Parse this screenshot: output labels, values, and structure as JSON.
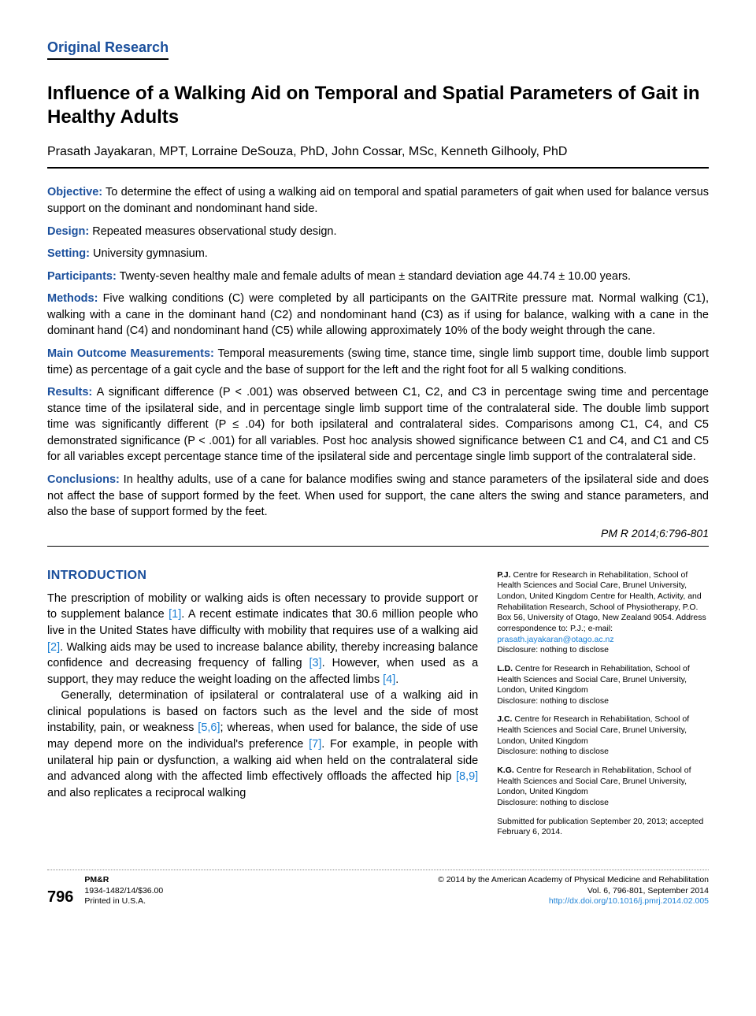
{
  "section_label": "Original Research",
  "title": "Influence of a Walking Aid on Temporal and Spatial Parameters of Gait in Healthy Adults",
  "authors": "Prasath Jayakaran, MPT, Lorraine DeSouza, PhD, John Cossar, MSc, Kenneth Gilhooly, PhD",
  "abstract": {
    "objective": {
      "label": "Objective:",
      "text": " To determine the effect of using a walking aid on temporal and spatial parameters of gait when used for balance versus support on the dominant and nondominant hand side."
    },
    "design": {
      "label": "Design:",
      "text": " Repeated measures observational study design."
    },
    "setting": {
      "label": "Setting:",
      "text": " University gymnasium."
    },
    "participants": {
      "label": "Participants:",
      "text": " Twenty-seven healthy male and female adults of mean ± standard deviation age 44.74 ± 10.00 years."
    },
    "methods": {
      "label": "Methods:",
      "text": " Five walking conditions (C) were completed by all participants on the GAITRite pressure mat. Normal walking (C1), walking with a cane in the dominant hand (C2) and nondominant hand (C3) as if using for balance, walking with a cane in the dominant hand (C4) and nondominant hand (C5) while allowing approximately 10% of the body weight through the cane."
    },
    "outcome": {
      "label": "Main Outcome Measurements:",
      "text": " Temporal measurements (swing time, stance time, single limb support time, double limb support time) as percentage of a gait cycle and the base of support for the left and the right foot for all 5 walking conditions."
    },
    "results": {
      "label": "Results:",
      "text": " A significant difference (P < .001) was observed between C1, C2, and C3 in percentage swing time and percentage stance time of the ipsilateral side, and in percentage single limb support time of the contralateral side. The double limb support time was significantly different (P ≤ .04) for both ipsilateral and contralateral sides. Comparisons among C1, C4, and C5 demonstrated significance (P < .001) for all variables. Post hoc analysis showed significance between C1 and C4, and C1 and C5 for all variables except percentage stance time of the ipsilateral side and percentage single limb support of the contralateral side."
    },
    "conclusions": {
      "label": "Conclusions:",
      "text": " In healthy adults, use of a cane for balance modifies swing and stance parameters of the ipsilateral side and does not affect the base of support formed by the feet. When used for support, the cane alters the swing and stance parameters, and also the base of support formed by the feet."
    }
  },
  "citation": "PM R 2014;6:796-801",
  "intro_heading": "INTRODUCTION",
  "intro_p1_a": "The prescription of mobility or walking aids is often necessary to provide support or to supplement balance ",
  "intro_p1_r1": "[1]",
  "intro_p1_b": ". A recent estimate indicates that 30.6 million people who live in the United States have difficulty with mobility that requires use of a walking aid ",
  "intro_p1_r2": "[2]",
  "intro_p1_c": ". Walking aids may be used to increase balance ability, thereby increasing balance confidence and decreasing frequency of falling ",
  "intro_p1_r3": "[3]",
  "intro_p1_d": ". However, when used as a support, they may reduce the weight loading on the affected limbs ",
  "intro_p1_r4": "[4]",
  "intro_p1_e": ".",
  "intro_p2_a": "Generally, determination of ipsilateral or contralateral use of a walking aid in clinical populations is based on factors such as the level and the side of most instability, pain, or weakness ",
  "intro_p2_r1": "[5,6]",
  "intro_p2_b": "; whereas, when used for balance, the side of use may depend more on the individual's preference ",
  "intro_p2_r2": "[7]",
  "intro_p2_c": ". For example, in people with unilateral hip pain or dysfunction, a walking aid when held on the contralateral side and advanced along with the affected limb effectively offloads the affected hip ",
  "intro_p2_r3": "[8,9]",
  "intro_p2_d": " and also replicates a reciprocal walking",
  "affiliations": [
    {
      "initials": "P.J.",
      "text": " Centre for Research in Rehabilitation, School of Health Sciences and Social Care, Brunel University, London, United Kingdom Centre for Health, Activity, and Rehabilitation Research, School of Physiotherapy, P.O. Box 56, University of Otago, New Zealand 9054. Address correspondence to: P.J.; e-mail: ",
      "email": "prasath.jayakaran@otago.ac.nz",
      "disclosure": "Disclosure: nothing to disclose"
    },
    {
      "initials": "L.D.",
      "text": " Centre for Research in Rehabilitation, School of Health Sciences and Social Care, Brunel University, London, United Kingdom",
      "disclosure": "Disclosure: nothing to disclose"
    },
    {
      "initials": "J.C.",
      "text": " Centre for Research in Rehabilitation, School of Health Sciences and Social Care, Brunel University, London, United Kingdom",
      "disclosure": "Disclosure: nothing to disclose"
    },
    {
      "initials": "K.G.",
      "text": " Centre for Research in Rehabilitation, School of Health Sciences and Social Care, Brunel University, London, United Kingdom",
      "disclosure": "Disclosure: nothing to disclose"
    }
  ],
  "submitted": "Submitted for publication September 20, 2013; accepted February 6, 2014.",
  "footer": {
    "page": "796",
    "journal": "PM&R",
    "issn_price": "1934-1482/14/$36.00",
    "printed": "Printed in U.S.A.",
    "copyright": "© 2014 by the American Academy of Physical Medicine and Rehabilitation",
    "vol": "Vol. 6, 796-801, September 2014",
    "doi": "http://dx.doi.org/10.1016/j.pmrj.2014.02.005"
  },
  "colors": {
    "accent": "#1a4f9c",
    "link": "#1a7fd4",
    "text": "#000000",
    "background": "#ffffff"
  },
  "typography": {
    "title_fontsize": 24,
    "body_fontsize": 14.5,
    "sidebar_fontsize": 10.5,
    "footer_fontsize": 10.5
  }
}
